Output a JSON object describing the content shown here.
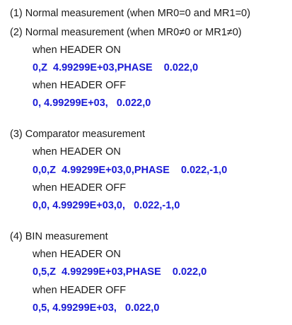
{
  "colors": {
    "text": "#1a1a1a",
    "code": "#1a1ad6"
  },
  "sections": [
    {
      "heading": "(1) Normal measurement (when MR0=0 and MR1=0)"
    },
    {
      "heading": "(2) Normal measurement (when MR0≠0 or MR1≠0)",
      "header_on_label": "when HEADER ON",
      "header_on_code": "0,Z  4.99299E+03,PHASE    0.022,0",
      "header_off_label": "when HEADER OFF",
      "header_off_code": "0, 4.99299E+03,   0.022,0"
    },
    {
      "heading": "(3) Comparator measurement",
      "header_on_label": "when HEADER ON",
      "header_on_code": "0,0,Z  4.99299E+03,0,PHASE    0.022,-1,0",
      "header_off_label": "when HEADER OFF",
      "header_off_code": "0,0, 4.99299E+03,0,   0.022,-1,0"
    },
    {
      "heading": "(4) BIN measurement",
      "header_on_label": "when HEADER ON",
      "header_on_code": "0,5,Z  4.99299E+03,PHASE    0.022,0",
      "header_off_label": "when HEADER OFF",
      "header_off_code": "0,5, 4.99299E+03,   0.022,0"
    }
  ]
}
